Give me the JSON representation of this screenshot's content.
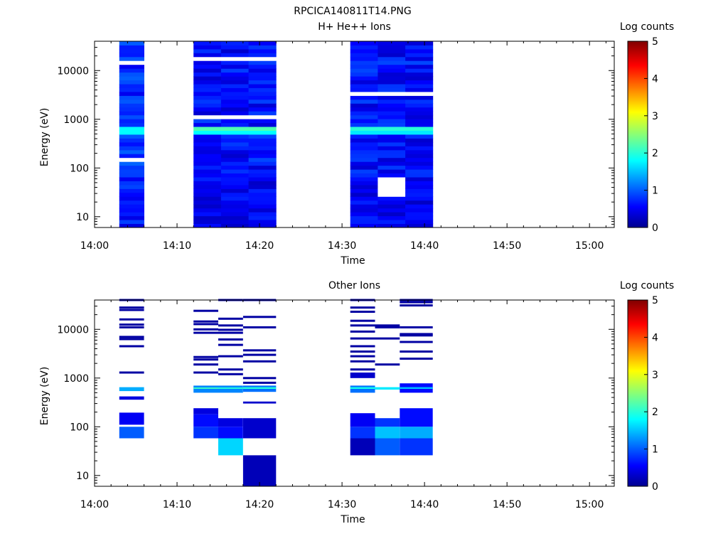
{
  "figure_title": "RPCICA140811T14.PNG",
  "chart_data": [
    {
      "type": "heatmap",
      "title": "H+ He++ Ions",
      "xlabel": "Time",
      "ylabel": "Energy (eV)",
      "y_scale": "log",
      "xlim": [
        "14:00",
        "15:03"
      ],
      "ylim": [
        6,
        40000
      ],
      "x_ticks": [
        "14:00",
        "14:10",
        "14:20",
        "14:30",
        "14:40",
        "14:50",
        "15:00"
      ],
      "y_ticks": [
        "10",
        "100",
        "1000",
        "10000"
      ],
      "colorbar": {
        "label": "Log counts",
        "range": [
          0,
          5
        ],
        "ticks": [
          "0",
          "1",
          "2",
          "3",
          "4",
          "5"
        ]
      },
      "columns": [
        {
          "start": "14:03",
          "end": "14:06",
          "base": 0.75,
          "lo": 6,
          "hi": 40000,
          "bands": [
            {
              "e_lo": 520,
              "e_hi": 700,
              "v": 1.8
            },
            {
              "e_lo": 590,
              "e_hi": 640,
              "v": 2.1
            },
            {
              "e_lo": 130,
              "e_hi": 155,
              "v": null
            },
            {
              "e_lo": 960,
              "e_hi": 1040,
              "v": null
            },
            {
              "e_lo": 5100,
              "e_hi": 5400,
              "v": null
            },
            {
              "e_lo": 14500,
              "e_hi": 15500,
              "v": null
            }
          ]
        },
        {
          "start": "14:12",
          "end": "14:22",
          "base": 0.6,
          "lo": 6,
          "hi": 40000,
          "bands": [
            {
              "e_lo": 500,
              "e_hi": 720,
              "v": 1.8
            },
            {
              "e_lo": 580,
              "e_hi": 650,
              "v": 2.2
            },
            {
              "e_lo": 1050,
              "e_hi": 1120,
              "v": null
            },
            {
              "e_lo": 6600,
              "e_hi": 7000,
              "v": null
            },
            {
              "e_lo": 16800,
              "e_hi": 17600,
              "v": null
            }
          ]
        },
        {
          "start": "14:31",
          "end": "14:41",
          "base": 0.6,
          "lo": 6,
          "hi": 40000,
          "bands": [
            {
              "e_lo": 520,
              "e_hi": 720,
              "v": 1.7
            },
            {
              "e_lo": 590,
              "e_hi": 650,
              "v": 2.0
            },
            {
              "e_lo": 26,
              "e_hi": 60,
              "v": null,
              "from": "14:34",
              "to": "14:37"
            },
            {
              "e_lo": 3800,
              "e_hi": 4000,
              "v": null
            },
            {
              "e_lo": 3300,
              "e_hi": 3450,
              "v": null
            },
            {
              "e_lo": 230,
              "e_hi": 245,
              "v": null,
              "from": "14:37",
              "to": "14:41"
            },
            {
              "e_lo": 290,
              "e_hi": 305,
              "v": null,
              "from": "14:37",
              "to": "14:41"
            },
            {
              "e_lo": 18500,
              "e_hi": 19500,
              "v": null,
              "from": "14:34",
              "to": "14:37"
            },
            {
              "e_lo": 7900,
              "e_hi": 8300,
              "v": null,
              "from": "14:34",
              "to": "14:37"
            }
          ]
        }
      ]
    },
    {
      "type": "heatmap",
      "title": "Other Ions",
      "xlabel": "Time",
      "ylabel": "Energy (eV)",
      "y_scale": "log",
      "xlim": [
        "14:00",
        "15:03"
      ],
      "ylim": [
        6,
        40000
      ],
      "x_ticks": [
        "14:00",
        "14:10",
        "14:20",
        "14:30",
        "14:40",
        "14:50",
        "15:00"
      ],
      "y_ticks": [
        "10",
        "100",
        "1000",
        "10000"
      ],
      "colorbar": {
        "label": "Log counts",
        "range": [
          0,
          5
        ],
        "ticks": [
          "0",
          "1",
          "2",
          "3",
          "4",
          "5"
        ]
      },
      "columns": [
        {
          "start": "14:03",
          "end": "14:06",
          "lines": [
            40000,
            28000,
            25000,
            16000,
            12500,
            11000,
            7000,
            6300,
            4500,
            1300
          ],
          "blocks": [
            {
              "e_lo": 540,
              "e_hi": 650,
              "v": 1.4
            },
            {
              "e_lo": 360,
              "e_hi": 420,
              "v": 0.4
            },
            {
              "e_lo": 110,
              "e_hi": 195,
              "v": 0.5
            },
            {
              "e_lo": 58,
              "e_hi": 100,
              "v": 1.0
            }
          ]
        },
        {
          "start": "14:12",
          "end": "14:15",
          "lines": [
            24000,
            14500,
            12800,
            10000,
            8500,
            2700,
            2400,
            1900,
            1300
          ],
          "blocks": [
            {
              "e_lo": 500,
              "e_hi": 700,
              "v": 1.2
            },
            {
              "e_lo": 600,
              "e_hi": 640,
              "v": 2.1
            },
            {
              "e_lo": 180,
              "e_hi": 240,
              "v": 0.4
            },
            {
              "e_lo": 100,
              "e_hi": 180,
              "v": 0.6
            },
            {
              "e_lo": 58,
              "e_hi": 100,
              "v": 0.8
            }
          ]
        },
        {
          "start": "14:15",
          "end": "14:18",
          "lines": [
            40000,
            16500,
            12000,
            9800,
            8500,
            6200,
            4800,
            2800,
            1500,
            1200
          ],
          "blocks": [
            {
              "e_lo": 500,
              "e_hi": 700,
              "v": 1.2
            },
            {
              "e_lo": 600,
              "e_hi": 640,
              "v": 2.0
            },
            {
              "e_lo": 100,
              "e_hi": 150,
              "v": 0.4
            },
            {
              "e_lo": 58,
              "e_hi": 100,
              "v": 0.6
            },
            {
              "e_lo": 26,
              "e_hi": 58,
              "v": 1.6
            }
          ]
        },
        {
          "start": "14:18",
          "end": "14:22",
          "lines": [
            40000,
            18000,
            11000,
            3700,
            3000,
            2200,
            1000,
            800
          ],
          "blocks": [
            {
              "e_lo": 520,
              "e_hi": 700,
              "v": 1.1
            },
            {
              "e_lo": 600,
              "e_hi": 650,
              "v": 2.0
            },
            {
              "e_lo": 300,
              "e_hi": 330,
              "v": 0.3
            },
            {
              "e_lo": 58,
              "e_hi": 150,
              "v": 0.3
            },
            {
              "e_lo": 6,
              "e_hi": 26,
              "v": 0.2
            }
          ]
        },
        {
          "start": "14:31",
          "end": "14:34",
          "lines": [
            40000,
            28000,
            23000,
            15000,
            12000,
            9000,
            6500,
            4500,
            3500,
            2800,
            2200,
            1500
          ],
          "blocks": [
            {
              "e_lo": 500,
              "e_hi": 700,
              "v": 1.1
            },
            {
              "e_lo": 600,
              "e_hi": 650,
              "v": 1.9
            },
            {
              "e_lo": 1000,
              "e_hi": 1300,
              "v": 0.3
            },
            {
              "e_lo": 100,
              "e_hi": 190,
              "v": 0.5
            },
            {
              "e_lo": 58,
              "e_hi": 100,
              "v": 0.8
            },
            {
              "e_lo": 26,
              "e_hi": 58,
              "v": 0.2
            }
          ]
        },
        {
          "start": "14:34",
          "end": "14:37",
          "lines": [
            12000,
            11000,
            6500,
            1900
          ],
          "blocks": [
            {
              "e_lo": 580,
              "e_hi": 650,
              "v": 1.7
            },
            {
              "e_lo": 100,
              "e_hi": 150,
              "v": 0.8
            },
            {
              "e_lo": 58,
              "e_hi": 100,
              "v": 1.5
            },
            {
              "e_lo": 26,
              "e_hi": 58,
              "v": 1.0
            }
          ]
        },
        {
          "start": "14:37",
          "end": "14:41",
          "lines": [
            40000,
            36000,
            31000,
            11000,
            8000,
            7500,
            5500,
            3500,
            2500
          ],
          "blocks": [
            {
              "e_lo": 500,
              "e_hi": 780,
              "v": 0.6
            },
            {
              "e_lo": 600,
              "e_hi": 650,
              "v": 1.5
            },
            {
              "e_lo": 100,
              "e_hi": 240,
              "v": 0.6
            },
            {
              "e_lo": 58,
              "e_hi": 100,
              "v": 1.4
            },
            {
              "e_lo": 26,
              "e_hi": 58,
              "v": 0.8
            }
          ]
        }
      ]
    }
  ]
}
